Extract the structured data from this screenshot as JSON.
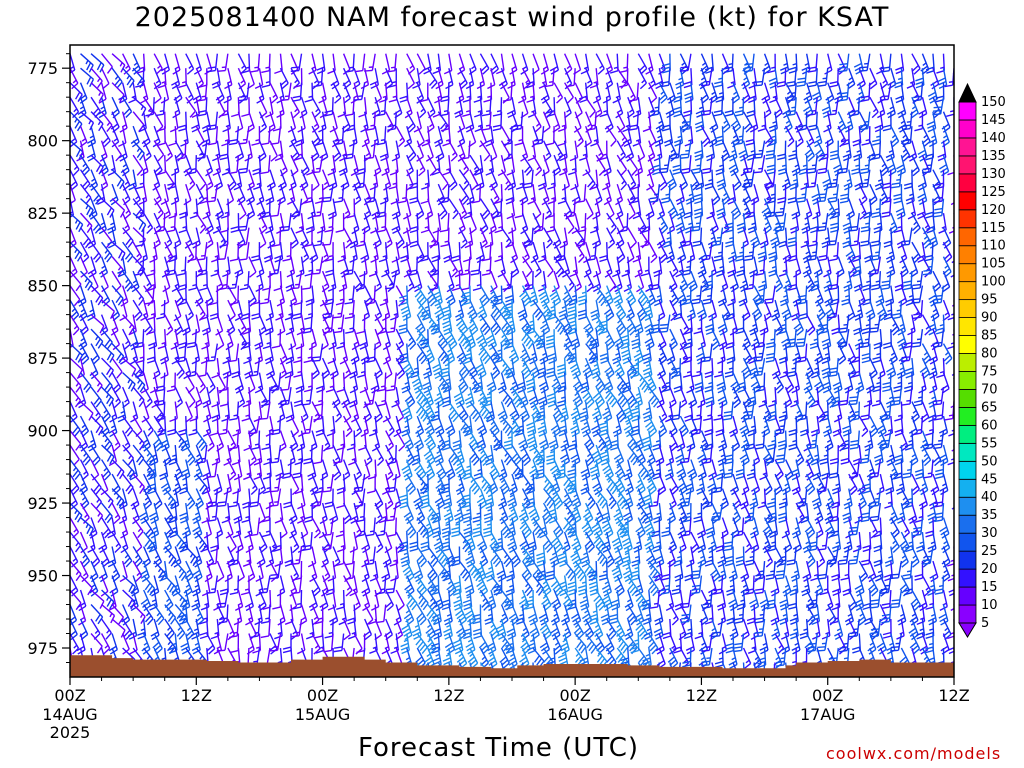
{
  "title": "2025081400 NAM forecast wind profile (kt) for KSAT",
  "credit": "coolwx.com/models",
  "chart_data": {
    "type": "wind-barb time-height",
    "xlabel": "Forecast Time (UTC)",
    "ylabel": "",
    "x_range_hours": [
      0,
      84
    ],
    "y_range_hpa": [
      985,
      767
    ],
    "y_ticks": [
      775,
      800,
      825,
      850,
      875,
      900,
      925,
      950,
      975
    ],
    "x_ticks": [
      {
        "hour": 0,
        "label": "00Z",
        "date": "14AUG",
        "year": "2025"
      },
      {
        "hour": 12,
        "label": "12Z",
        "date": "",
        "year": ""
      },
      {
        "hour": 24,
        "label": "00Z",
        "date": "15AUG",
        "year": ""
      },
      {
        "hour": 36,
        "label": "12Z",
        "date": "",
        "year": ""
      },
      {
        "hour": 48,
        "label": "00Z",
        "date": "16AUG",
        "year": ""
      },
      {
        "hour": 60,
        "label": "12Z",
        "date": "",
        "year": ""
      },
      {
        "hour": 72,
        "label": "00Z",
        "date": "17AUG",
        "year": ""
      },
      {
        "hour": 84,
        "label": "12Z",
        "date": "",
        "year": ""
      }
    ],
    "units": "kt",
    "colorbar": {
      "levels": [
        5,
        10,
        15,
        20,
        25,
        30,
        35,
        40,
        45,
        50,
        55,
        60,
        65,
        70,
        75,
        80,
        85,
        90,
        95,
        100,
        105,
        110,
        115,
        120,
        125,
        130,
        135,
        140,
        145,
        150
      ],
      "colors": [
        "#8a00ff",
        "#6600ff",
        "#3311ff",
        "#1133ee",
        "#1155ee",
        "#1a6fee",
        "#1e8ff0",
        "#14b0f0",
        "#00d4ee",
        "#00e8c0",
        "#00ee80",
        "#22ee22",
        "#55dd00",
        "#88ee00",
        "#bbee00",
        "#ffff00",
        "#ffe600",
        "#ffcc00",
        "#ffb000",
        "#ff9900",
        "#ff8000",
        "#ff6600",
        "#ff3300",
        "#ff0000",
        "#ff0040",
        "#ff1470",
        "#ff1493",
        "#ff00cc",
        "#ff00ff",
        "#000000"
      ]
    },
    "surface_pressure_hpa": [
      {
        "hour": 0,
        "p": 977.5
      },
      {
        "hour": 3,
        "p": 977.5
      },
      {
        "hour": 4,
        "p": 978.5
      },
      {
        "hour": 6,
        "p": 979
      },
      {
        "hour": 11,
        "p": 979
      },
      {
        "hour": 13,
        "p": 979.5
      },
      {
        "hour": 16,
        "p": 980
      },
      {
        "hour": 21,
        "p": 979
      },
      {
        "hour": 24,
        "p": 978
      },
      {
        "hour": 27,
        "p": 978
      },
      {
        "hour": 28,
        "p": 979
      },
      {
        "hour": 30,
        "p": 980
      },
      {
        "hour": 33,
        "p": 981
      },
      {
        "hour": 37,
        "p": 981.5
      },
      {
        "hour": 40,
        "p": 982
      },
      {
        "hour": 41.5,
        "p": 982
      },
      {
        "hour": 42.5,
        "p": 981
      },
      {
        "hour": 45,
        "p": 980.5
      },
      {
        "hour": 50,
        "p": 980.5
      },
      {
        "hour": 53,
        "p": 981
      },
      {
        "hour": 56,
        "p": 981.5
      },
      {
        "hour": 60,
        "p": 981.5
      },
      {
        "hour": 62,
        "p": 982
      },
      {
        "hour": 66,
        "p": 982
      },
      {
        "hour": 68,
        "p": 981
      },
      {
        "hour": 69,
        "p": 980
      },
      {
        "hour": 72,
        "p": 979.5
      },
      {
        "hour": 75,
        "p": 979
      },
      {
        "hour": 78,
        "p": 980
      },
      {
        "hour": 84,
        "p": 980.5
      }
    ],
    "wind_regimes": [
      {
        "hours": [
          0,
          7
        ],
        "levels": "all",
        "direction_deg": 150,
        "speed_kt": [
          10,
          25
        ]
      },
      {
        "hours": [
          7,
          13
        ],
        "levels": "below_900",
        "direction_deg": 155,
        "speed_kt": [
          20,
          30
        ]
      },
      {
        "hours": [
          13,
          32
        ],
        "levels": "all",
        "direction_deg": 170,
        "speed_kt": [
          10,
          20
        ]
      },
      {
        "hours": [
          32,
          56
        ],
        "levels": "below_850",
        "direction_deg": 160,
        "speed_kt": [
          25,
          40
        ]
      },
      {
        "hours": [
          56,
          84
        ],
        "levels": "all",
        "direction_deg": 170,
        "speed_kt": [
          15,
          30
        ]
      }
    ]
  }
}
